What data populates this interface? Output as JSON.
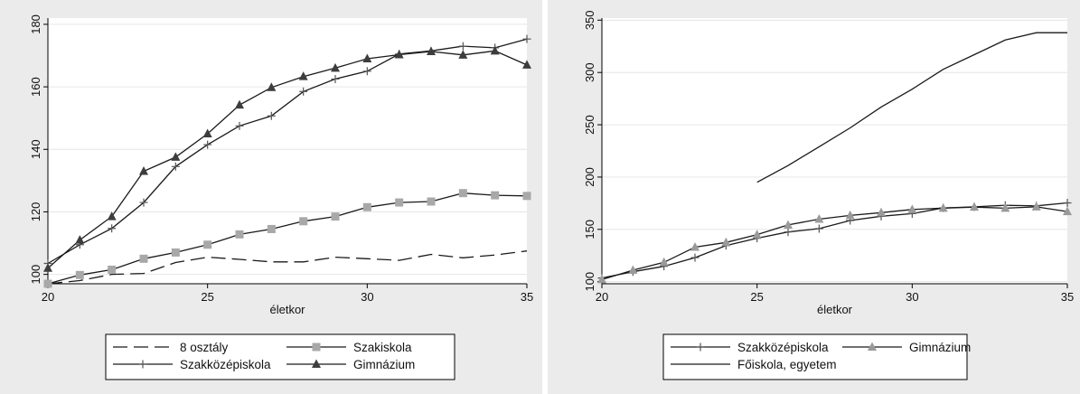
{
  "chart_data": [
    {
      "type": "line",
      "xlabel": "életkor",
      "ylabel": "",
      "xlim": [
        20,
        35
      ],
      "ylim": [
        97,
        182
      ],
      "xticks": [
        20,
        25,
        30,
        35
      ],
      "yticks": [
        100,
        120,
        140,
        160,
        180
      ],
      "grid": true,
      "legend_position": "bottom",
      "x": [
        20,
        21,
        22,
        23,
        24,
        25,
        26,
        27,
        28,
        29,
        30,
        31,
        32,
        33,
        34,
        35
      ],
      "series": [
        {
          "name": "8 osztály",
          "style": "dashed",
          "marker": "none",
          "values": [
            97,
            98,
            100,
            100.3,
            103.8,
            105.5,
            104.8,
            104,
            104,
            105.5,
            105,
            104.5,
            106.4,
            105.3,
            106.2,
            107.5
          ]
        },
        {
          "name": "Szakiskola",
          "style": "solid",
          "marker": "square",
          "values": [
            97,
            99.8,
            101.5,
            105,
            107,
            109.5,
            112.8,
            114.5,
            117,
            118.5,
            121.5,
            123,
            123.3,
            126,
            125.3,
            125.1
          ]
        },
        {
          "name": "Szakközépiskola",
          "style": "solid",
          "marker": "plus",
          "values": [
            103.5,
            109.5,
            114.7,
            123,
            134.5,
            141.5,
            147.5,
            150.7,
            158.5,
            162.5,
            165,
            170.5,
            171.5,
            173,
            172.5,
            175.3
          ]
        },
        {
          "name": "Gimnázium",
          "style": "solid",
          "marker": "triangle",
          "values": [
            102,
            111,
            118.5,
            133,
            137.5,
            145,
            154.2,
            159.8,
            163.3,
            166,
            169,
            170.3,
            171.3,
            170.2,
            171.5,
            167
          ]
        }
      ]
    },
    {
      "type": "line",
      "xlabel": "életkor",
      "ylabel": "",
      "xlim": [
        20,
        35
      ],
      "ylim": [
        98,
        352
      ],
      "xticks": [
        20,
        25,
        30,
        35
      ],
      "yticks": [
        100,
        150,
        200,
        250,
        300,
        350
      ],
      "grid": true,
      "legend_position": "bottom",
      "x": [
        20,
        21,
        22,
        23,
        24,
        25,
        26,
        27,
        28,
        29,
        30,
        31,
        32,
        33,
        34,
        35
      ],
      "series": [
        {
          "name": "Szakközépiskola",
          "style": "solid",
          "marker": "plus",
          "values": [
            103.5,
            109.5,
            114.7,
            123,
            134.5,
            141.5,
            147.5,
            150.7,
            158.5,
            162.5,
            165,
            170.5,
            171.5,
            173,
            172.5,
            175.3
          ]
        },
        {
          "name": "Gimnázium",
          "style": "solid",
          "marker": "triangle",
          "values": [
            102,
            111,
            118.5,
            133,
            137.5,
            145,
            154.2,
            159.8,
            163.3,
            166,
            169,
            170.3,
            171.3,
            170.2,
            171.5,
            167
          ]
        },
        {
          "name": "Főiskola, egyetem",
          "style": "solid",
          "marker": "none",
          "values": [
            null,
            null,
            null,
            null,
            null,
            195,
            211,
            229,
            247,
            267,
            284,
            303,
            317,
            331,
            338,
            338
          ]
        }
      ]
    }
  ]
}
